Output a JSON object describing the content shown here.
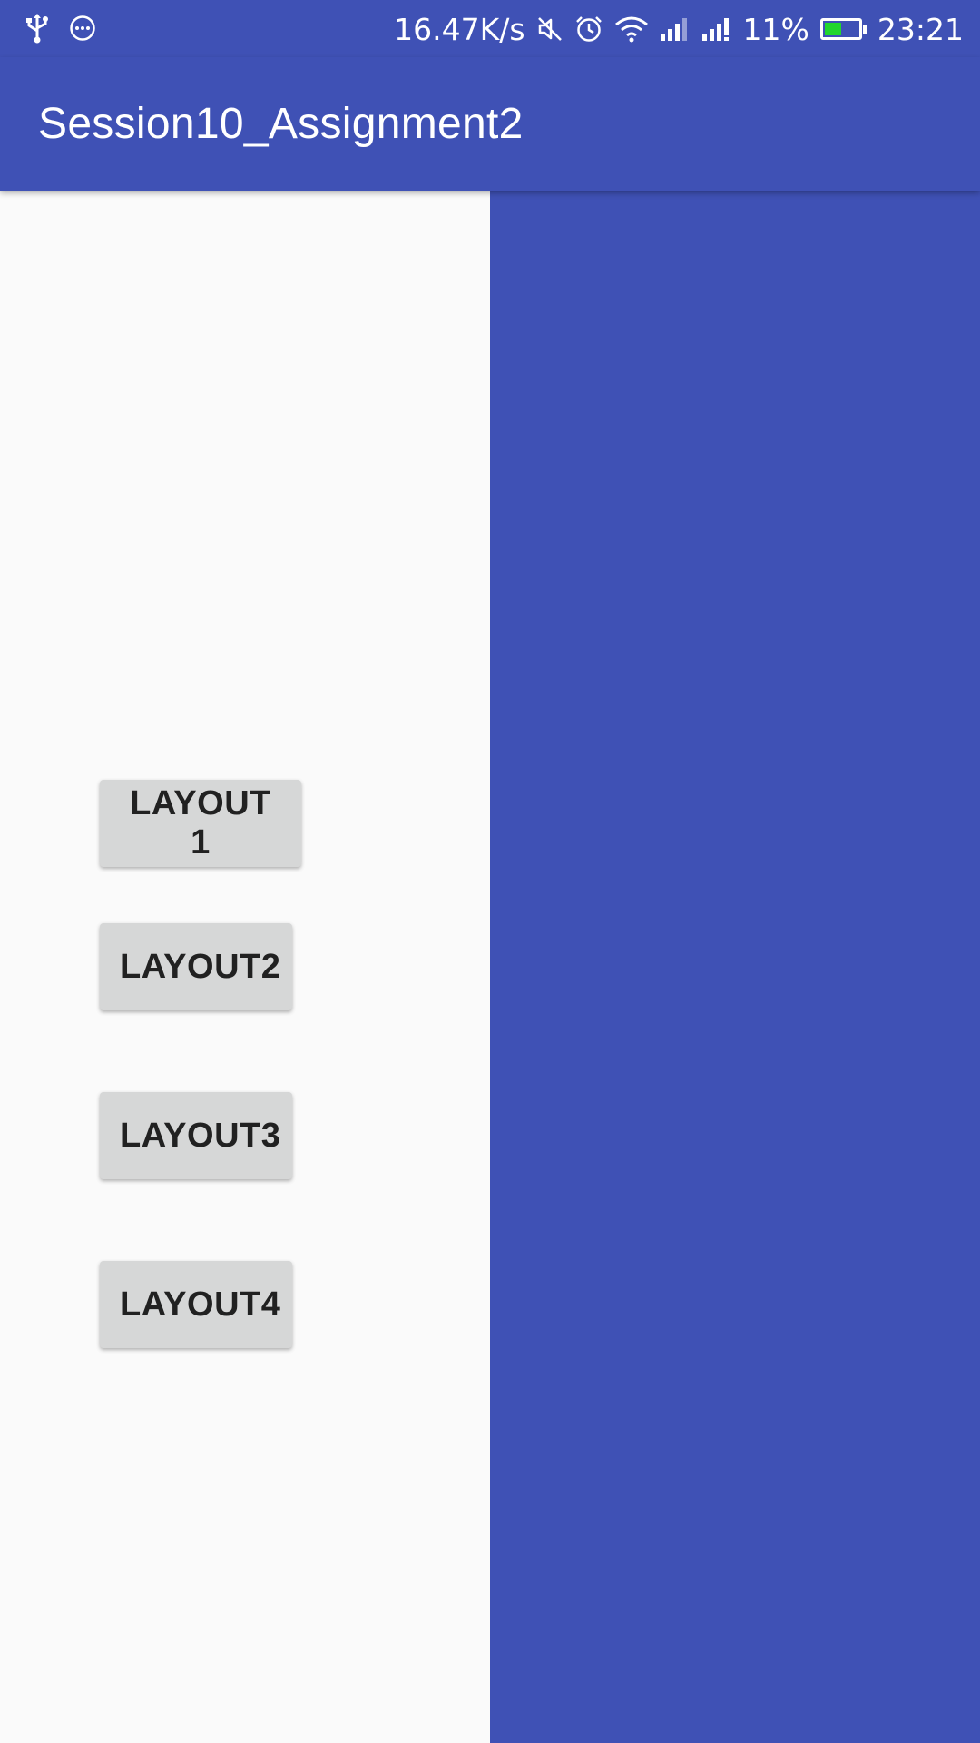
{
  "status_bar": {
    "network_speed": "16.47K/s",
    "battery_percent": "11%",
    "battery_level": 0.11,
    "time": "23:21",
    "icons": [
      "usb-icon",
      "more-icon",
      "mute-icon",
      "alarm-icon",
      "wifi-icon",
      "signal-icon",
      "signal-icon",
      "battery-icon"
    ]
  },
  "app_bar": {
    "title": "Session10_Assignment2"
  },
  "buttons": {
    "layout1": "LAYOUT 1",
    "layout2": "LAYOUT2",
    "layout3": "LAYOUT3",
    "layout4": "LAYOUT4"
  },
  "colors": {
    "primary": "#3f51b5",
    "background": "#fafafa",
    "button": "#d6d7d7",
    "battery_fill": "#22d62e"
  }
}
